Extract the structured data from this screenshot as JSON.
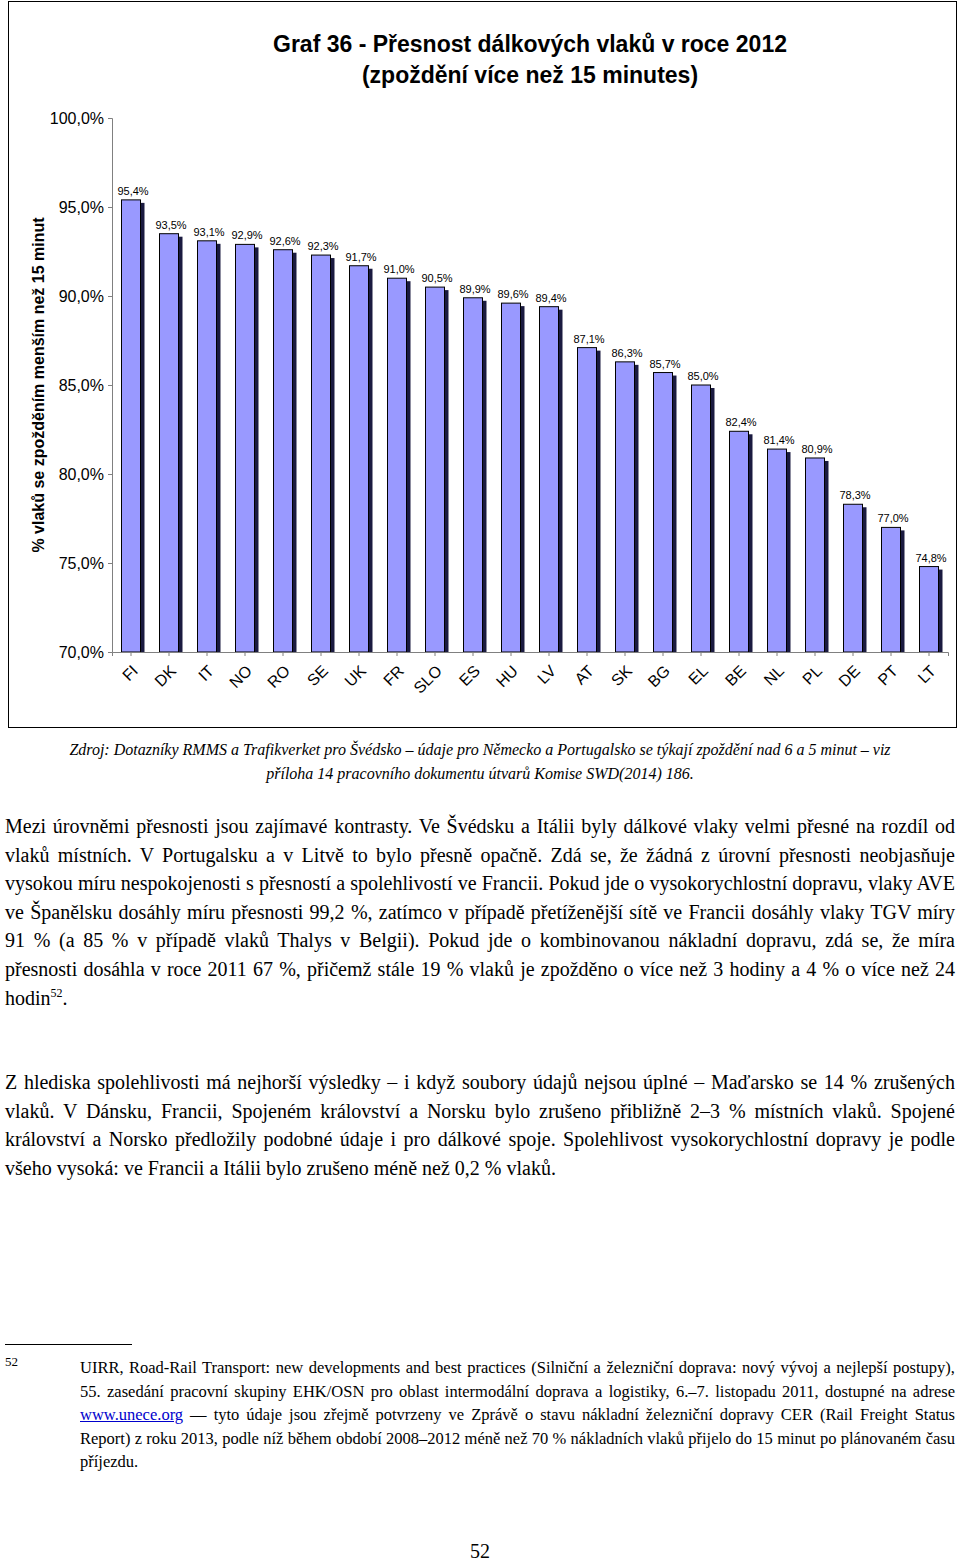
{
  "chart_data": {
    "type": "bar",
    "title": "Graf 36 - Přesnost dálkových vlaků v roce 2012",
    "subtitle": "(zpoždění více než 15 minutes)",
    "y_label": "% vlaků se zpožděním menším než 15 minut",
    "categories": [
      "FI",
      "DK",
      "IT",
      "NO",
      "RO",
      "SE",
      "UK",
      "FR",
      "SLO",
      "ES",
      "HU",
      "LV",
      "AT",
      "SK",
      "BG",
      "EL",
      "BE",
      "NL",
      "PL",
      "DE",
      "PT",
      "LT"
    ],
    "values": [
      95.4,
      93.5,
      93.1,
      92.9,
      92.6,
      92.3,
      91.7,
      91.0,
      90.5,
      89.9,
      89.6,
      89.4,
      87.1,
      86.3,
      85.7,
      85.0,
      82.4,
      81.4,
      80.9,
      78.3,
      77.0,
      74.8
    ],
    "value_labels": [
      "95,4%",
      "93,5%",
      "93,1%",
      "92,9%",
      "92,6%",
      "92,3%",
      "91,7%",
      "91,0%",
      "90,5%",
      "89,9%",
      "89,6%",
      "89,4%",
      "87,1%",
      "86,3%",
      "85,7%",
      "85,0%",
      "82,4%",
      "81,4%",
      "80,9%",
      "78,3%",
      "77,0%",
      "74,8%"
    ],
    "color": "#9999ff",
    "ylim": [
      70,
      100
    ],
    "yticks": [
      {
        "value": 70,
        "label": "70,0%"
      },
      {
        "value": 75,
        "label": "75,0%"
      },
      {
        "value": 80,
        "label": "80,0%"
      },
      {
        "value": 85,
        "label": "85,0%"
      },
      {
        "value": 90,
        "label": "90,0%"
      },
      {
        "value": 95,
        "label": "95,0%"
      },
      {
        "value": 100,
        "label": "100,0%"
      }
    ],
    "data_labels": true,
    "grid": false
  },
  "page": {
    "source_note": "Zdroj: Dotazníky RMMS a Trafikverket pro Švédsko – údaje pro Německo a Portugalsko se týkají zpoždění nad 6 a 5 minut – viz příloha 14 pracovního dokumentu útvarů Komise SWD(2014) 186.",
    "paragraphs": [
      [
        {
          "text": "Mezi úrovněmi přesnosti jsou zajímavé kontrasty. Ve Švédsku a Itálii byly dálkové vlaky velmi přesné na rozdíl od vlaků místních. V Portugalsku a v Litvě to bylo přesně opačně. Zdá se, že žádná z úrovní přesnosti neobjasňuje vysokou míru nespokojenosti s přesností a spolehlivostí ve Francii. Pokud jde o vysokorychlostní dopravu, vlaky AVE ve Španělsku dosáhly míru přesnosti 99,2 %, zatímco v případě přetíženější sítě ve Francii dosáhly vlaky TGV míry 91 % (a 85 % v případě vlaků Thalys v Belgii). Pokud jde o kombinovanou nákladní dopravu, zdá se, že míra přesnosti dosáhla v roce 2011 67 %, přičemž stále 19 % vlaků je zpožděno o více než 3 hodiny a 4 % o více než 24 hodin"
        },
        {
          "sup": "52"
        },
        {
          "text": "."
        }
      ],
      [
        {
          "text": "Z hlediska spolehlivosti má nejhorší výsledky – i když soubory údajů nejsou úplné – Maďarsko se 14 % zrušených vlaků. V Dánsku, Francii, Spojeném království a Norsku bylo zrušeno přibližně 2–3 % místních vlaků. Spojené království a Norsko předložily podobné údaje i pro dálkové spoje. Spolehlivost vysokorychlostní dopravy je podle všeho vysoká: ve Francii a Itálii bylo zrušeno méně než 0,2 % vlaků."
        }
      ]
    ],
    "footnote": {
      "number": "52",
      "parts": [
        {
          "text": "UIRR, Road-Rail Transport: new developments and best practices (Silniční a železniční doprava: nový vývoj a nejlepší postupy), 55. zasedání pracovní skupiny EHK/OSN pro oblast intermodální doprava a logistiky, 6.–7. listopadu 2011, dostupné na adrese "
        },
        {
          "link": "www.unece.org"
        },
        {
          "text": " — tyto údaje jsou zřejmě potvrzeny ve Zprávě o stavu nákladní železniční dopravy CER (Rail Freight Status Report) z roku 2013, podle níž během období 2008–2012 méně než 70 % nákladních vlaků přijelo do 15 minut po plánovaném času příjezdu."
        }
      ]
    },
    "page_number": "52"
  }
}
